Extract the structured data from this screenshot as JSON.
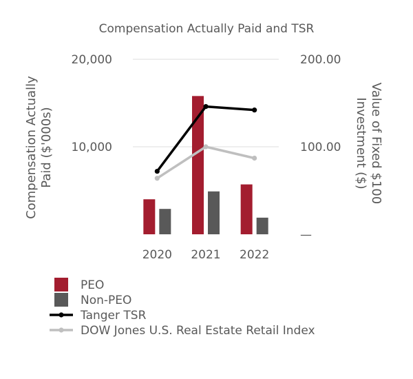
{
  "chart_data": {
    "type": "bar",
    "title": "Compensation Actually Paid and TSR",
    "categories": [
      "2020",
      "2021",
      "2022"
    ],
    "ylabel_left": "Compensation Actually Paid ($'000s)",
    "ylabel_right": "Value of Fixed $100 Investment ($)",
    "ylim_left": [
      0,
      20000
    ],
    "ylim_right": [
      0,
      200
    ],
    "left_ticks": [
      {
        "value": 20000,
        "label": "20,000"
      },
      {
        "value": 10000,
        "label": "10,000"
      }
    ],
    "right_ticks": [
      {
        "value": 200,
        "label": "200.00"
      },
      {
        "value": 100,
        "label": "100.00"
      },
      {
        "value": 0,
        "label": "—"
      }
    ],
    "grid": true,
    "series": [
      {
        "name": "PEO",
        "kind": "bar",
        "axis": "left",
        "color": "#A31D2F",
        "values": [
          4000,
          15800,
          5700
        ]
      },
      {
        "name": "Non-PEO",
        "kind": "bar",
        "axis": "left",
        "color": "#595959",
        "values": [
          2900,
          4900,
          1900
        ]
      },
      {
        "name": "Tanger TSR",
        "kind": "line",
        "axis": "right",
        "color": "#000000",
        "values": [
          72,
          146,
          142
        ]
      },
      {
        "name": "DOW Jones U.S. Real Estate Retail Index",
        "kind": "line",
        "axis": "right",
        "color": "#BFBFBF",
        "values": [
          64,
          100,
          87
        ]
      }
    ],
    "legend": [
      {
        "label": "PEO",
        "marker": "square",
        "color": "#A31D2F"
      },
      {
        "label": "Non-PEO",
        "marker": "square",
        "color": "#595959"
      },
      {
        "label": "Tanger TSR",
        "marker": "line",
        "color": "#000000"
      },
      {
        "label": "DOW Jones U.S. Real Estate Retail Index",
        "marker": "line",
        "color": "#BFBFBF"
      }
    ],
    "legend_position": "bottom-left"
  }
}
